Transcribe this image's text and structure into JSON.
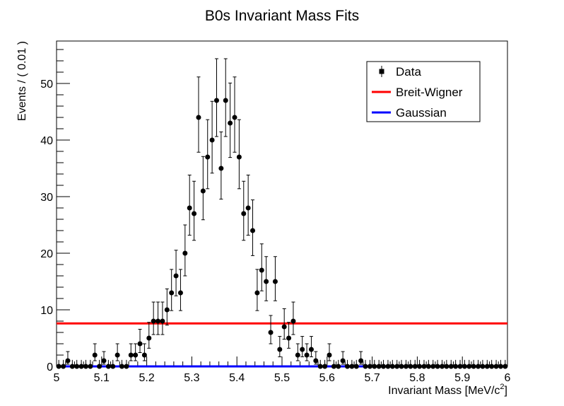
{
  "chart_data": {
    "type": "scatter",
    "title": "B0s Invariant Mass Fits",
    "xlabel": "Invariant Mass [MeV/c",
    "xlabel_sup": "2",
    "xlabel_end": "]",
    "ylabel": "Events / ( 0.01 )",
    "xlim": [
      5,
      6
    ],
    "ylim": [
      0,
      57.5
    ],
    "x_ticks": [
      "5",
      "5.1",
      "5.2",
      "5.3",
      "5.4",
      "5.5",
      "5.6",
      "5.7",
      "5.8",
      "5.9",
      "6"
    ],
    "y_ticks": [
      "0",
      "10",
      "20",
      "30",
      "40",
      "50"
    ],
    "grid": false,
    "legend_position": "top-right",
    "legend": [
      {
        "label": "Data",
        "color": "#000000",
        "kind": "marker"
      },
      {
        "label": "Breit-Wigner",
        "color": "#ff0000",
        "kind": "line"
      },
      {
        "label": "Gaussian",
        "color": "#0000ff",
        "kind": "line"
      }
    ],
    "series": [
      {
        "name": "Data",
        "color": "#000000",
        "x": [
          5.005,
          5.015,
          5.025,
          5.035,
          5.045,
          5.055,
          5.065,
          5.075,
          5.085,
          5.095,
          5.105,
          5.115,
          5.125,
          5.135,
          5.145,
          5.155,
          5.165,
          5.175,
          5.185,
          5.195,
          5.205,
          5.215,
          5.225,
          5.235,
          5.245,
          5.255,
          5.265,
          5.275,
          5.285,
          5.295,
          5.305,
          5.315,
          5.325,
          5.335,
          5.345,
          5.355,
          5.365,
          5.375,
          5.385,
          5.395,
          5.405,
          5.415,
          5.425,
          5.435,
          5.445,
          5.455,
          5.465,
          5.475,
          5.485,
          5.495,
          5.505,
          5.515,
          5.525,
          5.535,
          5.545,
          5.555,
          5.565,
          5.575,
          5.585,
          5.595,
          5.605,
          5.615,
          5.625,
          5.635,
          5.645,
          5.655,
          5.665,
          5.675,
          5.685,
          5.695,
          5.705,
          5.715,
          5.725,
          5.735,
          5.745,
          5.755,
          5.765,
          5.775,
          5.785,
          5.795,
          5.805,
          5.815,
          5.825,
          5.835,
          5.845,
          5.855,
          5.865,
          5.875,
          5.885,
          5.895,
          5.905,
          5.915,
          5.925,
          5.935,
          5.945,
          5.955,
          5.965,
          5.975,
          5.985,
          5.995
        ],
        "y": [
          0,
          0,
          1,
          0,
          0,
          0,
          0,
          0,
          2,
          0,
          1,
          0,
          0,
          2,
          0,
          0,
          2,
          2,
          4,
          2,
          5,
          8,
          8,
          8,
          10,
          13,
          16,
          13,
          20,
          28,
          27,
          44,
          31,
          37,
          40,
          47,
          35,
          47,
          43,
          44,
          37,
          27,
          28,
          24,
          13,
          17,
          15,
          6,
          15,
          3,
          7,
          5,
          8,
          2,
          3,
          2,
          3,
          1,
          0,
          0,
          2,
          0,
          0,
          1,
          0,
          0,
          0,
          1,
          0,
          0,
          0,
          0,
          0,
          0,
          0,
          0,
          0,
          0,
          0,
          0,
          0,
          0,
          0,
          0,
          0,
          0,
          0,
          0,
          0,
          0,
          0,
          0,
          0,
          0,
          0,
          0,
          0,
          0,
          0,
          0
        ]
      },
      {
        "name": "Breit-Wigner",
        "color": "#ff0000",
        "type": "line",
        "x": [
          5,
          6
        ],
        "y": [
          7.6,
          7.6
        ]
      },
      {
        "name": "Gaussian",
        "color": "#0000ff",
        "type": "line",
        "x": [
          5,
          6
        ],
        "y": [
          0,
          0
        ]
      }
    ]
  }
}
